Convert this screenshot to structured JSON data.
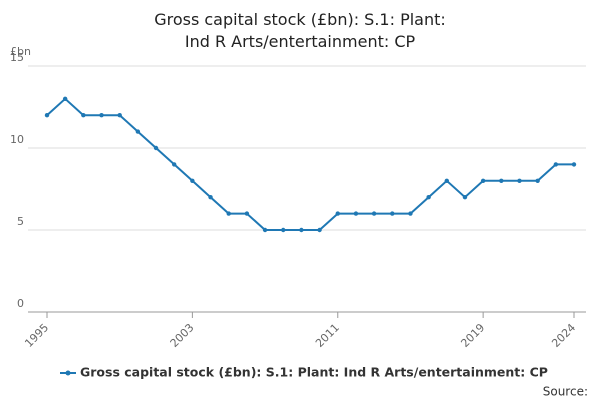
{
  "chart_data": {
    "type": "line",
    "title": "Gross capital stock (£bn): S.1: Plant: Ind R Arts/entertainment: CP",
    "y_label": "£bn",
    "source": "Source:",
    "x": [
      1995,
      1996,
      1997,
      1998,
      1999,
      2000,
      2001,
      2002,
      2003,
      2004,
      2005,
      2006,
      2007,
      2008,
      2009,
      2010,
      2011,
      2012,
      2013,
      2014,
      2015,
      2016,
      2017,
      2018,
      2019,
      2020,
      2021,
      2022,
      2023,
      2024
    ],
    "series": [
      {
        "name": "Gross capital stock (£bn): S.1: Plant: Ind R Arts/entertainment: CP",
        "color": "#1f78b4",
        "values": [
          12,
          13,
          12,
          12,
          12,
          11,
          10,
          9,
          8,
          7,
          6,
          6,
          5,
          5,
          5,
          5,
          6,
          6,
          6,
          6,
          6,
          7,
          8,
          7,
          8,
          8,
          8,
          8,
          9,
          9
        ]
      }
    ],
    "xlim": [
      1995,
      2024
    ],
    "xticks": [
      1995,
      2003,
      2011,
      2019,
      2024
    ],
    "ylim": [
      0,
      15
    ],
    "yticks": [
      0,
      5,
      10,
      15
    ],
    "grid": true
  }
}
